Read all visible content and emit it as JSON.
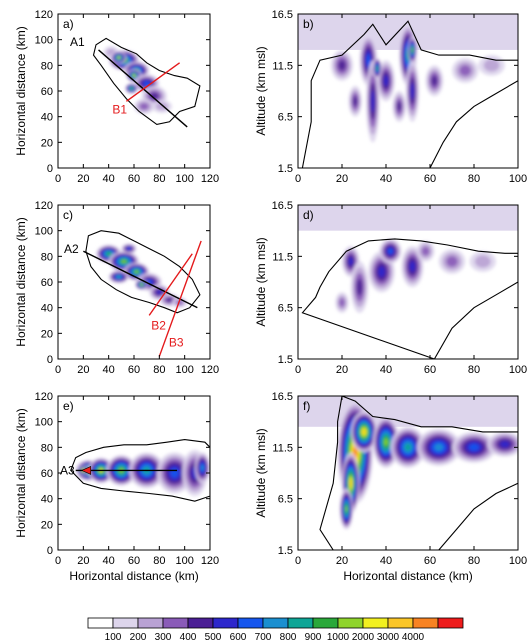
{
  "chart_data": [
    {
      "type": "heatmap",
      "panel_label": "a)",
      "xlabel": "",
      "ylabel": "Horizontal distance (km)",
      "xlim": [
        0,
        120
      ],
      "ylim": [
        0,
        120
      ],
      "xticks": [
        "0",
        "20",
        "40",
        "60",
        "80",
        "100",
        "120"
      ],
      "yticks": [
        "0",
        "20",
        "40",
        "60",
        "80",
        "100",
        "120"
      ],
      "cross_sections": [
        {
          "name": "A1",
          "color": "#000000",
          "from": [
            32,
            92
          ],
          "to": [
            102,
            32
          ]
        },
        {
          "name": "B1",
          "color": "#e41a1c",
          "from": [
            54,
            52
          ],
          "to": [
            96,
            82
          ]
        }
      ],
      "cloud_outline": [
        [
          30,
          96
        ],
        [
          38,
          101
        ],
        [
          50,
          94
        ],
        [
          62,
          89
        ],
        [
          70,
          82
        ],
        [
          80,
          76
        ],
        [
          92,
          72
        ],
        [
          102,
          70
        ],
        [
          112,
          64
        ],
        [
          108,
          48
        ],
        [
          96,
          44
        ],
        [
          88,
          36
        ],
        [
          78,
          34
        ],
        [
          64,
          44
        ],
        [
          54,
          54
        ],
        [
          44,
          66
        ],
        [
          34,
          80
        ],
        [
          28,
          88
        ]
      ],
      "reflectivity_cells": [
        [
          42,
          90,
          6,
          5,
          2
        ],
        [
          52,
          84,
          12,
          8,
          10
        ],
        [
          48,
          86,
          6,
          5,
          11
        ],
        [
          62,
          76,
          10,
          7,
          9
        ],
        [
          60,
          72,
          6,
          5,
          11
        ],
        [
          70,
          66,
          10,
          7,
          6
        ],
        [
          76,
          56,
          10,
          8,
          4
        ],
        [
          68,
          48,
          8,
          6,
          3
        ],
        [
          58,
          62,
          5,
          4,
          10
        ],
        [
          82,
          48,
          8,
          5,
          2
        ]
      ]
    },
    {
      "type": "heatmap",
      "panel_label": "b)",
      "xlabel": "",
      "ylabel": "Altitude (km msl)",
      "xlim": [
        0,
        100
      ],
      "ylim": [
        1.5,
        16.5
      ],
      "xticks": [
        "0",
        "20",
        "40",
        "60",
        "80",
        "100"
      ],
      "yticks": [
        "1.5",
        "6.5",
        "11.5",
        "16.5"
      ],
      "anvil_band": [
        13,
        16.5
      ],
      "cloud_outline": [
        [
          2,
          1.5
        ],
        [
          6,
          6
        ],
        [
          6,
          10
        ],
        [
          10,
          12
        ],
        [
          20,
          12.5
        ],
        [
          30,
          14.5
        ],
        [
          34,
          15.5
        ],
        [
          40,
          13.5
        ],
        [
          50,
          15.8
        ],
        [
          56,
          13
        ],
        [
          64,
          12.5
        ],
        [
          78,
          12.5
        ],
        [
          90,
          12
        ],
        [
          100,
          12
        ],
        [
          100,
          10
        ],
        [
          88,
          8.5
        ],
        [
          80,
          7.5
        ],
        [
          72,
          6
        ],
        [
          66,
          4
        ],
        [
          60,
          1.5
        ]
      ],
      "reflectivity_cells": [
        [
          20,
          11.5,
          5,
          1.5,
          4
        ],
        [
          32,
          12,
          4,
          2.5,
          6
        ],
        [
          34,
          8,
          3,
          4,
          5
        ],
        [
          26,
          8,
          3,
          1.5,
          4
        ],
        [
          40,
          10,
          4,
          2,
          5
        ],
        [
          50,
          12.5,
          4,
          3,
          8
        ],
        [
          52,
          9,
          3,
          3,
          5
        ],
        [
          46,
          7.5,
          3,
          1.5,
          4
        ],
        [
          62,
          10,
          4,
          1.5,
          4
        ],
        [
          76,
          11,
          6,
          1.2,
          3
        ],
        [
          88,
          11.5,
          6,
          1,
          2
        ],
        [
          36,
          11.2,
          2,
          1,
          9
        ],
        [
          52,
          13,
          2,
          1.3,
          10
        ]
      ]
    },
    {
      "type": "heatmap",
      "panel_label": "c)",
      "xlabel": "",
      "ylabel": "Horizontal distance (km)",
      "xlim": [
        0,
        120
      ],
      "ylim": [
        0,
        120
      ],
      "xticks": [
        "0",
        "20",
        "40",
        "60",
        "80",
        "100",
        "120"
      ],
      "yticks": [
        "0",
        "20",
        "40",
        "60",
        "80",
        "100",
        "120"
      ],
      "cross_sections": [
        {
          "name": "A2",
          "color": "#000000",
          "from": [
            20,
            84
          ],
          "to": [
            110,
            40
          ]
        },
        {
          "name": "B2",
          "color": "#e41a1c",
          "from": [
            72,
            34
          ],
          "to": [
            106,
            82
          ]
        },
        {
          "name": "B3",
          "color": "#e41a1c",
          "from": [
            80,
            2
          ],
          "to": [
            113,
            92
          ]
        }
      ],
      "cloud_outline": [
        [
          24,
          96
        ],
        [
          34,
          100
        ],
        [
          48,
          98
        ],
        [
          60,
          92
        ],
        [
          72,
          86
        ],
        [
          84,
          80
        ],
        [
          96,
          72
        ],
        [
          106,
          62
        ],
        [
          112,
          50
        ],
        [
          104,
          40
        ],
        [
          94,
          36
        ],
        [
          84,
          40
        ],
        [
          72,
          44
        ],
        [
          58,
          48
        ],
        [
          46,
          54
        ],
        [
          34,
          62
        ],
        [
          26,
          72
        ],
        [
          22,
          84
        ]
      ],
      "reflectivity_cells": [
        [
          40,
          82,
          10,
          7,
          9
        ],
        [
          52,
          76,
          12,
          8,
          10
        ],
        [
          62,
          68,
          10,
          7,
          10
        ],
        [
          48,
          64,
          8,
          5,
          8
        ],
        [
          72,
          60,
          10,
          7,
          6
        ],
        [
          80,
          52,
          8,
          6,
          5
        ],
        [
          88,
          46,
          8,
          5,
          4
        ],
        [
          96,
          44,
          6,
          4,
          3
        ],
        [
          56,
          86,
          6,
          4,
          6
        ],
        [
          66,
          58,
          5,
          4,
          11
        ]
      ]
    },
    {
      "type": "heatmap",
      "panel_label": "d)",
      "xlabel": "",
      "ylabel": "Altitude (km msl)",
      "xlim": [
        0,
        100
      ],
      "ylim": [
        1.5,
        16.5
      ],
      "xticks": [
        "0",
        "20",
        "40",
        "60",
        "80",
        "100"
      ],
      "yticks": [
        "1.5",
        "6.5",
        "11.5",
        "16.5"
      ],
      "anvil_band": [
        14,
        16.5
      ],
      "cloud_outline": [
        [
          2,
          6
        ],
        [
          8,
          7.5
        ],
        [
          10,
          8.5
        ],
        [
          14,
          10
        ],
        [
          22,
          12
        ],
        [
          32,
          13
        ],
        [
          44,
          13.2
        ],
        [
          56,
          13
        ],
        [
          68,
          12.6
        ],
        [
          82,
          12
        ],
        [
          94,
          11.8
        ],
        [
          100,
          11.8
        ],
        [
          100,
          9
        ],
        [
          92,
          8
        ],
        [
          80,
          6.5
        ],
        [
          70,
          4.5
        ],
        [
          62,
          1.5
        ]
      ],
      "reflectivity_cells": [
        [
          24,
          11,
          4,
          1.5,
          5
        ],
        [
          28,
          8.5,
          4,
          2.5,
          4
        ],
        [
          38,
          10,
          6,
          2,
          5
        ],
        [
          42,
          12,
          5,
          1.2,
          6
        ],
        [
          52,
          10.5,
          5,
          2,
          5
        ],
        [
          58,
          12,
          4,
          1,
          3
        ],
        [
          70,
          11,
          6,
          1.2,
          3
        ],
        [
          84,
          11,
          6,
          1,
          2
        ],
        [
          20,
          7,
          3,
          1,
          3
        ]
      ]
    },
    {
      "type": "heatmap",
      "panel_label": "e)",
      "xlabel": "Horizontal distance (km)",
      "ylabel": "Horizontal distance (km)",
      "xlim": [
        0,
        120
      ],
      "ylim": [
        0,
        120
      ],
      "xticks": [
        "0",
        "20",
        "40",
        "60",
        "80",
        "100",
        "120"
      ],
      "yticks": [
        "0",
        "20",
        "40",
        "60",
        "80",
        "100",
        "120"
      ],
      "cross_sections": [
        {
          "name": "A3",
          "color": "#000000",
          "from": [
            14,
            62
          ],
          "to": [
            94,
            62
          ]
        }
      ],
      "cloud_outline": [
        [
          10,
          62
        ],
        [
          14,
          72
        ],
        [
          22,
          76
        ],
        [
          36,
          80
        ],
        [
          52,
          82
        ],
        [
          70,
          82
        ],
        [
          86,
          84
        ],
        [
          100,
          86
        ],
        [
          116,
          84
        ],
        [
          120,
          80
        ],
        [
          120,
          42
        ],
        [
          108,
          38
        ],
        [
          90,
          42
        ],
        [
          72,
          44
        ],
        [
          52,
          46
        ],
        [
          34,
          48
        ],
        [
          20,
          52
        ]
      ],
      "reflectivity_cells": [
        [
          24,
          62,
          10,
          8,
          13
        ],
        [
          20,
          62,
          5,
          4,
          14
        ],
        [
          34,
          62,
          10,
          10,
          11
        ],
        [
          50,
          62,
          12,
          12,
          10
        ],
        [
          70,
          62,
          14,
          14,
          8
        ],
        [
          92,
          60,
          14,
          16,
          6
        ],
        [
          108,
          60,
          10,
          18,
          5
        ],
        [
          114,
          64,
          6,
          12,
          7
        ]
      ]
    },
    {
      "type": "heatmap",
      "panel_label": "f)",
      "xlabel": "Horizontal distance (km)",
      "ylabel": "Altitude (km msl)",
      "xlim": [
        0,
        100
      ],
      "ylim": [
        1.5,
        16.5
      ],
      "xticks": [
        "0",
        "20",
        "40",
        "60",
        "80",
        "100"
      ],
      "yticks": [
        "1.5",
        "6.5",
        "11.5",
        "16.5"
      ],
      "anvil_band": [
        13.5,
        16.5
      ],
      "cloud_outline": [
        [
          10,
          3.5
        ],
        [
          16,
          8
        ],
        [
          18,
          12
        ],
        [
          18,
          14
        ],
        [
          20,
          16.5
        ],
        [
          26,
          16
        ],
        [
          34,
          14.5
        ],
        [
          44,
          14.2
        ],
        [
          56,
          13.5
        ],
        [
          70,
          13.5
        ],
        [
          84,
          13
        ],
        [
          100,
          13
        ],
        [
          100,
          8
        ],
        [
          90,
          7
        ],
        [
          80,
          5.5
        ],
        [
          72,
          3.5
        ],
        [
          64,
          1.5
        ],
        [
          16,
          1.5
        ]
      ],
      "reflectivity_cells": [
        [
          26,
          11,
          8,
          5,
          13
        ],
        [
          24,
          8,
          4,
          3,
          12
        ],
        [
          30,
          13,
          6,
          2,
          12
        ],
        [
          40,
          12,
          6,
          2.5,
          10
        ],
        [
          50,
          11.5,
          8,
          2,
          8
        ],
        [
          64,
          11.5,
          10,
          1.8,
          7
        ],
        [
          80,
          11.5,
          10,
          1.5,
          6
        ],
        [
          94,
          11.8,
          8,
          1.2,
          5
        ],
        [
          22,
          5.5,
          3,
          2,
          10
        ]
      ]
    }
  ],
  "colorbar": {
    "labels": [
      "100",
      "200",
      "300",
      "400",
      "500",
      "600",
      "700",
      "800",
      "900",
      "1000",
      "2000",
      "3000",
      "4000"
    ],
    "colors": [
      "#ffffff",
      "#ddd5ec",
      "#b9a2d4",
      "#8a5bb8",
      "#4b1f95",
      "#2d27cc",
      "#1656ee",
      "#1b8fd0",
      "#0ea596",
      "#2aa83a",
      "#8fd42c",
      "#f2f020",
      "#fbc628",
      "#f88322",
      "#ee1c1c"
    ]
  }
}
